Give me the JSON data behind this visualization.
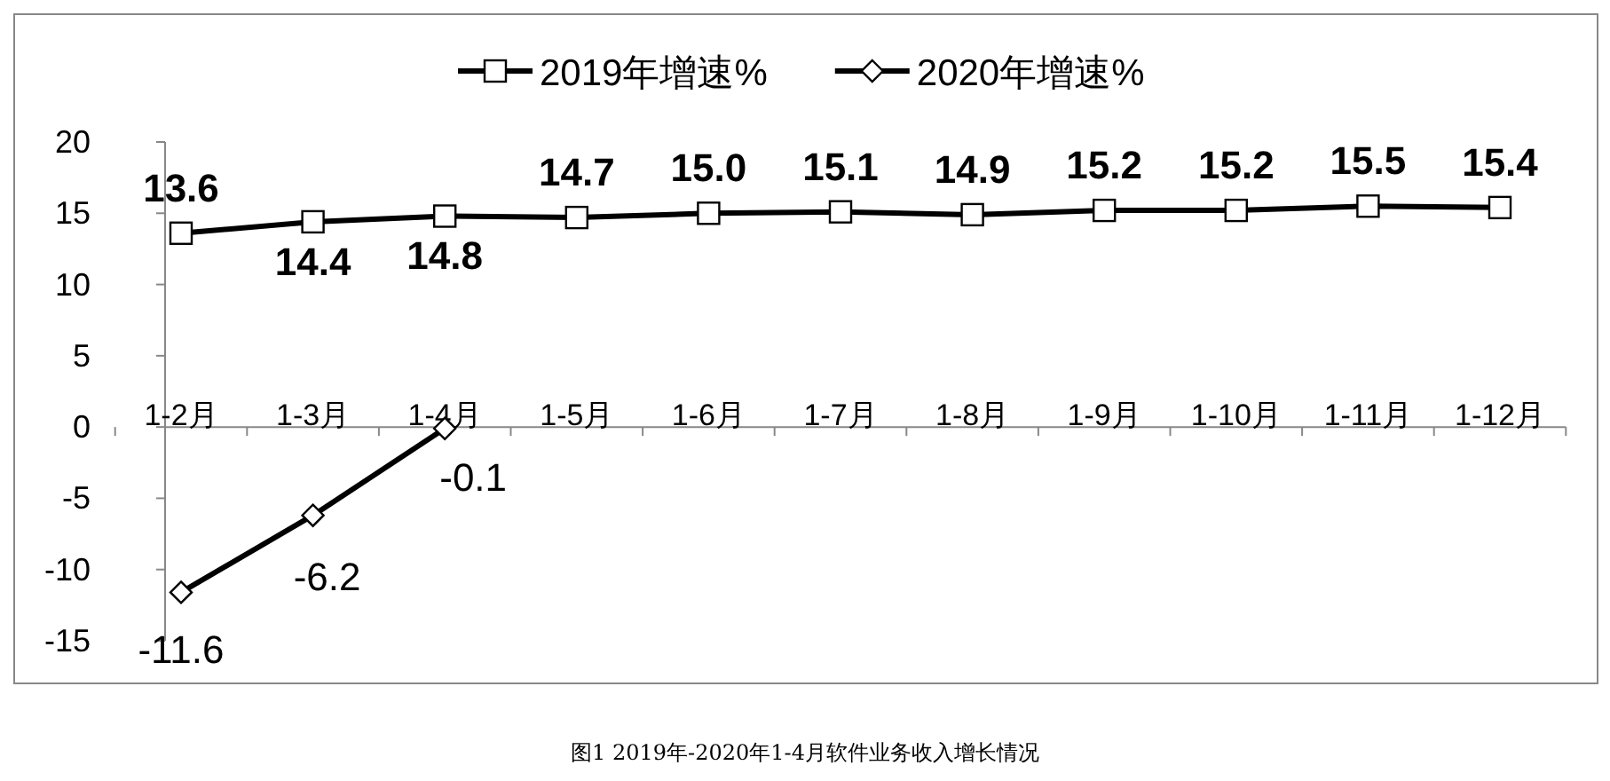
{
  "chart_data": {
    "type": "line",
    "categories": [
      "1-2月",
      "1-3月",
      "1-4月",
      "1-5月",
      "1-6月",
      "1-7月",
      "1-8月",
      "1-9月",
      "1-10月",
      "1-11月",
      "1-12月"
    ],
    "series": [
      {
        "name": "2019年增速%",
        "color": "#000000",
        "marker": "square",
        "values": [
          13.6,
          14.4,
          14.8,
          14.7,
          15.0,
          15.1,
          14.9,
          15.2,
          15.2,
          15.5,
          15.4
        ],
        "value_labels": [
          "13.6",
          "14.4",
          "14.8",
          "14.7",
          "15.0",
          "15.1",
          "14.9",
          "15.2",
          "15.2",
          "15.5",
          "15.4"
        ]
      },
      {
        "name": "2020年增速%",
        "color": "#000000",
        "marker": "diamond",
        "values": [
          -11.6,
          -6.2,
          -0.1,
          null,
          null,
          null,
          null,
          null,
          null,
          null,
          null
        ],
        "value_labels": [
          "-11.6",
          "-6.2",
          "-0.1",
          null,
          null,
          null,
          null,
          null,
          null,
          null,
          null
        ]
      }
    ],
    "ylim": [
      -15,
      20
    ],
    "yticks": [
      -15,
      -10,
      -5,
      0,
      5,
      10,
      15,
      20
    ],
    "legend": "top",
    "annotations": [
      "图1    2019年-2020年1-4月软件业务收入增长情况"
    ]
  }
}
